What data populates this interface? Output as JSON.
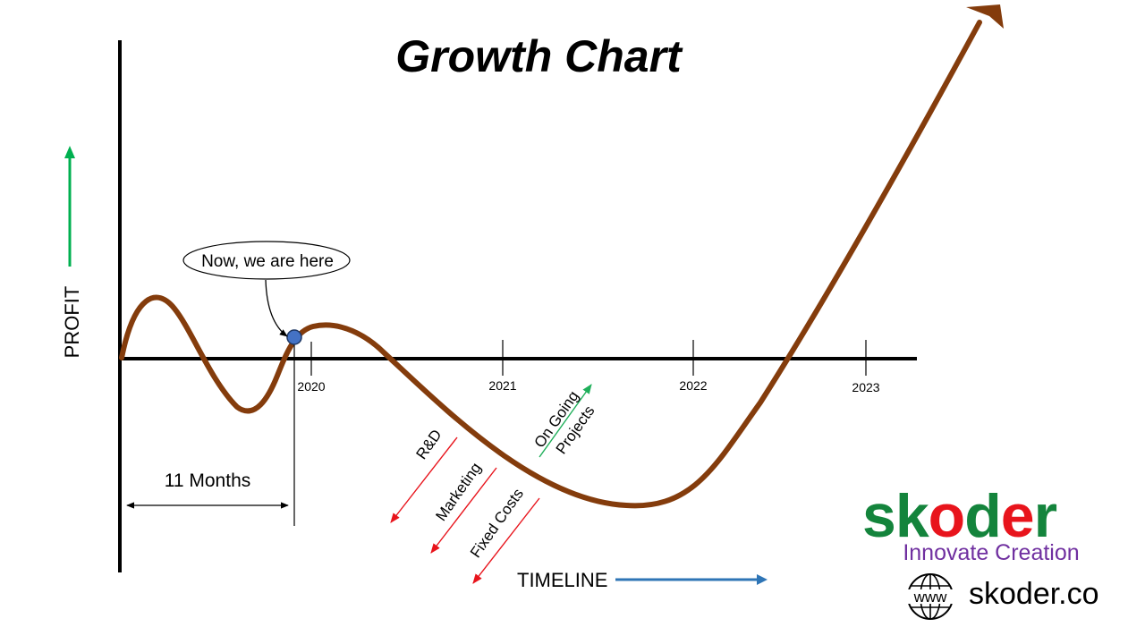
{
  "chart_data": {
    "type": "line",
    "title": "Growth Chart",
    "xlabel": "TIMELINE",
    "ylabel": "PROFIT",
    "x_ticks": [
      "2020",
      "2021",
      "2022",
      "2023"
    ],
    "series": [
      {
        "name": "Profit",
        "color": "#843C0C",
        "note": "Illustrative growth curve: early ups and downs, a dip after 2021, then steep rise past 2022"
      }
    ],
    "annotations": {
      "current_position": "Now, we are here",
      "duration": "11 Months",
      "negative_factors": [
        "R&D",
        "Marketing",
        "Fixed Costs"
      ],
      "positive_factor": "On Going Projects"
    }
  },
  "colors": {
    "curve": "#843C0C",
    "profit_arrow": "#00B050",
    "timeline_arrow": "#2E75B6",
    "negative_arrow": "#E8141C",
    "positive_arrow": "#1FAF5A",
    "marker": "#4472C4",
    "brand_green": "#14843C",
    "brand_red": "#E8141C",
    "brand_purple": "#7030A0"
  },
  "brand": {
    "name": "skoder",
    "tagline": "Innovate Creation",
    "website": "skoder.co",
    "www": "www"
  }
}
